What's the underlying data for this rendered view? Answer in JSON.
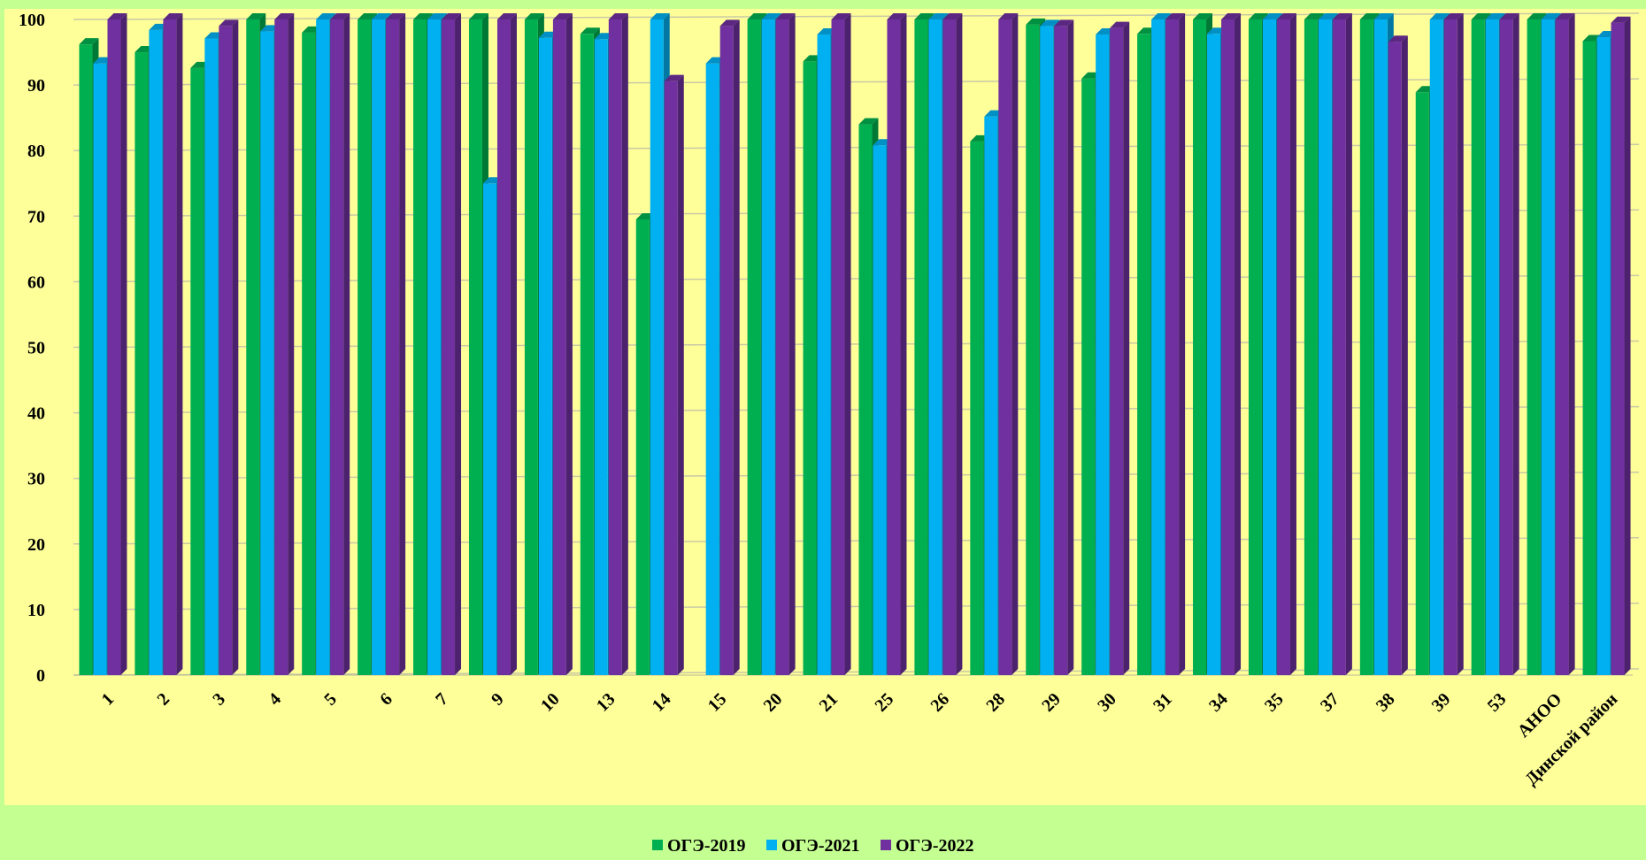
{
  "chart_data": {
    "type": "bar",
    "title": "",
    "xlabel": "",
    "ylabel": "",
    "ylim": [
      0,
      100
    ],
    "yticks": [
      0,
      10,
      20,
      30,
      40,
      50,
      60,
      70,
      80,
      90,
      100
    ],
    "grid": true,
    "legend_position": "bottom-center",
    "categories": [
      "1",
      "2",
      "3",
      "4",
      "5",
      "6",
      "7",
      "9",
      "10",
      "13",
      "14",
      "15",
      "20",
      "21",
      "25",
      "26",
      "28",
      "29",
      "30",
      "31",
      "34",
      "35",
      "37",
      "38",
      "39",
      "53",
      "АНОО",
      "Динской район"
    ],
    "series": [
      {
        "name": "ОГЭ-2019",
        "color": "#00b050",
        "values": [
          96.2,
          95.0,
          92.6,
          100,
          98.0,
          100,
          100,
          100,
          100,
          97.8,
          69.5,
          null,
          100,
          93.6,
          84.0,
          100,
          81.4,
          99.2,
          91.0,
          97.8,
          100,
          100,
          100,
          100,
          88.9,
          100,
          100,
          96.7
        ]
      },
      {
        "name": "ОГЭ-2021",
        "color": "#00b0f0",
        "values": [
          93.3,
          98.4,
          97.1,
          98.2,
          100,
          100,
          100,
          75.0,
          97.2,
          97.0,
          100,
          93.3,
          100,
          97.7,
          80.8,
          100,
          85.2,
          99.0,
          97.7,
          100,
          97.8,
          100,
          100,
          100,
          100,
          100,
          100,
          97.3
        ]
      },
      {
        "name": "ОГЭ-2022",
        "color": "#7030a0",
        "values": [
          100,
          100,
          99.0,
          100,
          100,
          100,
          100,
          100,
          100,
          100,
          90.6,
          99.0,
          100,
          100,
          100,
          100,
          100,
          99.0,
          98.7,
          100,
          100,
          100,
          100,
          96.6,
          100,
          100,
          100,
          99.5
        ]
      }
    ]
  }
}
